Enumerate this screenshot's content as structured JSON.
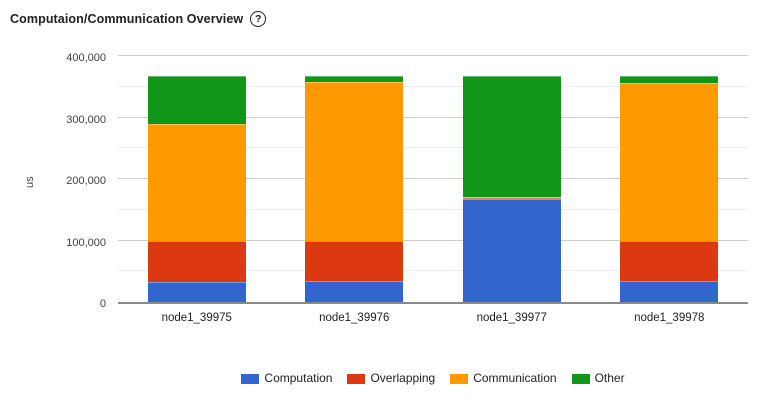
{
  "header": {
    "title": "Computaion/Communication Overview",
    "help_glyph": "?"
  },
  "chart_data": {
    "type": "bar",
    "stacked": true,
    "title": "Computaion/Communication Overview",
    "xlabel": "",
    "ylabel": "us",
    "categories": [
      "node1_39975",
      "node1_39976",
      "node1_39977",
      "node1_39978"
    ],
    "series": [
      {
        "name": "Computation",
        "color": "#3366CC",
        "values": [
          33000,
          34000,
          168000,
          34000
        ]
      },
      {
        "name": "Overlapping",
        "color": "#DC3912",
        "values": [
          67000,
          65000,
          1500,
          65000
        ]
      },
      {
        "name": "Communication",
        "color": "#FF9900",
        "values": [
          190000,
          258000,
          1500,
          257000
        ]
      },
      {
        "name": "Other",
        "color": "#109618",
        "values": [
          77000,
          10000,
          196000,
          11000
        ]
      }
    ],
    "bar_totals": [
      367000,
      367000,
      367000,
      367000
    ],
    "ylim": [
      0,
      400000
    ],
    "y_major_ticks": [
      0,
      100000,
      200000,
      300000,
      400000
    ],
    "y_tick_labels": [
      "0",
      "100,000",
      "200,000",
      "300,000",
      "400,000"
    ],
    "y_minor_step": 50000,
    "grid": true,
    "legend_position": "bottom"
  }
}
